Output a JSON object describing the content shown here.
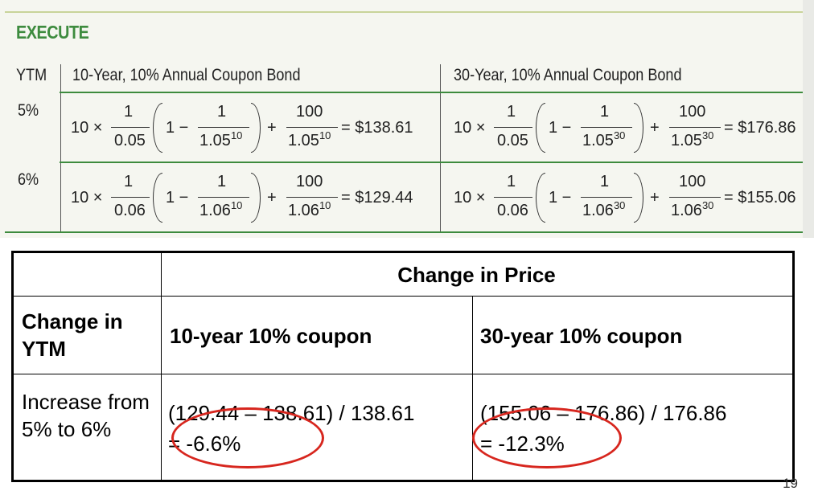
{
  "book": {
    "section_title": "EXECUTE",
    "headers": {
      "ytm": "YTM",
      "bond10": "10-Year, 10% Annual Coupon Bond",
      "bond30": "30-Year, 10% Annual Coupon Bond"
    },
    "rows": [
      {
        "ytm": "5%",
        "f10": {
          "coef": "10 ×",
          "num": "1",
          "rate": "0.05",
          "one": "1 −",
          "base": "1.05",
          "exp": "10",
          "plus": "+",
          "face": "100",
          "result": "= $138.61"
        },
        "f30": {
          "coef": "10 ×",
          "num": "1",
          "rate": "0.05",
          "one": "1 −",
          "base": "1.05",
          "exp": "30",
          "plus": "+",
          "face": "100",
          "result": "= $176.86"
        }
      },
      {
        "ytm": "6%",
        "f10": {
          "coef": "10 ×",
          "num": "1",
          "rate": "0.06",
          "one": "1 −",
          "base": "1.06",
          "exp": "10",
          "plus": "+",
          "face": "100",
          "result": "= $129.44"
        },
        "f30": {
          "coef": "10 ×",
          "num": "1",
          "rate": "0.06",
          "one": "1 −",
          "base": "1.06",
          "exp": "30",
          "plus": "+",
          "face": "100",
          "result": "= $155.06"
        }
      }
    ]
  },
  "comparison": {
    "group_header": "Change in Price",
    "row_header": "Change in YTM",
    "col10": "10-year 10% coupon",
    "col30": "30-year 10% coupon",
    "row_label": "Increase from 5% to 6%",
    "calc10_line1": "(129.44 – 138.61) / 138.61",
    "calc10_line2": "= -6.6%",
    "calc30_line1": "(155.06 – 176.86) / 176.86",
    "calc30_line2": "= -12.3%"
  },
  "page_number": "19",
  "colors": {
    "accent_green": "#3d8b3e",
    "highlight_red": "#d7261e"
  }
}
